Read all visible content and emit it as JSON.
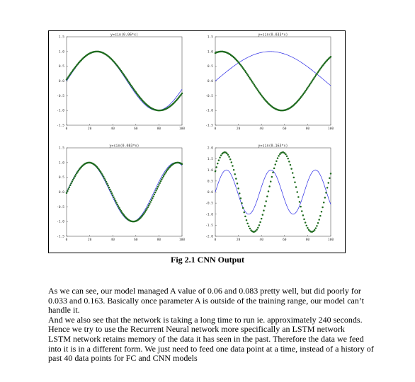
{
  "caption": "Fig 2.1 CNN Output",
  "paragraphs": [
    "As we can see, our model managed A value of 0.06 and 0.083 pretty well, but did poorly for 0.033 and 0.163. Basically once parameter A is outside of the training range, our model can’t handle it.",
    "And we also see that the network is taking a long time to run ie. approximately 240 seconds.",
    "Hence we try to use the Recurrent Neural network more specifically an LSTM network",
    "LSTM network retains memory of the data it has seen in the past. Therefore the data we feed into it is in a different form. We just need to feed one data point at a time, instead of a history of past 40 data points for FC and CNN models"
  ],
  "colors": {
    "actual": "#2a2ae6",
    "predicted": "#1f6b1f"
  },
  "chart_data": [
    {
      "type": "scatter",
      "title": "y=sin(0.06*x)",
      "a": 0.06,
      "xlim": [
        0,
        100
      ],
      "ylim": [
        -1.5,
        1.5
      ],
      "xticks": [
        "0",
        "20",
        "40",
        "60",
        "80",
        "100"
      ],
      "yticks": [
        "1.5",
        "1.0",
        "0.5",
        "0.0",
        "-0.5",
        "-1.0",
        "-1.5"
      ],
      "series": [
        {
          "kind": "line",
          "role": "actual",
          "formula": "sin(0.06*x)"
        },
        {
          "kind": "points",
          "role": "predicted",
          "note": "closely follows actual"
        }
      ]
    },
    {
      "type": "scatter",
      "title": "y=sin(0.033*x)",
      "a": 0.033,
      "xlim": [
        0,
        100
      ],
      "ylim": [
        -1.5,
        1.5
      ],
      "xticks": [
        "0",
        "20",
        "40",
        "60",
        "80",
        "100"
      ],
      "yticks": [
        "1.5",
        "1.0",
        "0.5",
        "0.0",
        "-0.5",
        "-1.0",
        "-1.5"
      ],
      "series": [
        {
          "kind": "line",
          "role": "actual",
          "formula": "sin(0.033*x)"
        },
        {
          "kind": "points",
          "role": "predicted",
          "note": "oscillates faster than actual"
        }
      ]
    },
    {
      "type": "scatter",
      "title": "y=sin(0.083*x)",
      "a": 0.083,
      "xlim": [
        0,
        100
      ],
      "ylim": [
        -1.5,
        1.5
      ],
      "xticks": [
        "0",
        "20",
        "40",
        "60",
        "80",
        "100"
      ],
      "yticks": [
        "1.5",
        "1.0",
        "0.5",
        "0.0",
        "-0.5",
        "-1.0",
        "-1.5"
      ],
      "series": [
        {
          "kind": "line",
          "role": "actual",
          "formula": "sin(0.083*x)"
        },
        {
          "kind": "points",
          "role": "predicted",
          "note": "closely follows actual"
        }
      ]
    },
    {
      "type": "scatter",
      "title": "y=sin(0.163*x)",
      "a": 0.163,
      "xlim": [
        0,
        100
      ],
      "ylim": [
        -2.0,
        2.0
      ],
      "xticks": [
        "0",
        "20",
        "40",
        "60",
        "80",
        "100"
      ],
      "yticks": [
        "2.0",
        "1.5",
        "1.0",
        "0.5",
        "0.0",
        "-0.5",
        "-1.0",
        "-1.5",
        "-2.0"
      ],
      "series": [
        {
          "kind": "line",
          "role": "actual",
          "formula": "sin(0.163*x)"
        },
        {
          "kind": "points",
          "role": "predicted",
          "note": "larger amplitude (~1.8) and different frequency"
        }
      ]
    }
  ]
}
